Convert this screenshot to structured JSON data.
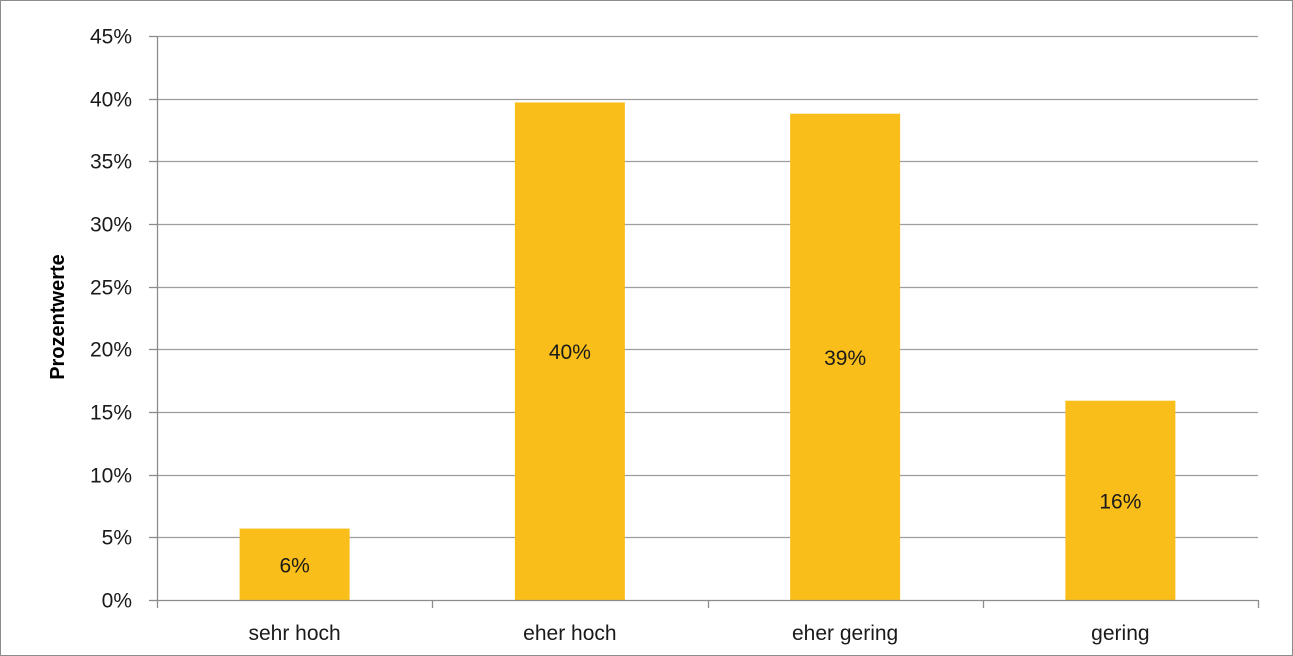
{
  "chart_data": {
    "type": "bar",
    "title": "",
    "xlabel": "",
    "ylabel": "Prozentwerte",
    "categories": [
      "sehr hoch",
      "eher hoch",
      "eher gering",
      "gering"
    ],
    "values": [
      5.7,
      39.7,
      38.8,
      15.9
    ],
    "data_labels": [
      "6%",
      "40%",
      "39%",
      "16%"
    ],
    "ylim": [
      0,
      45
    ],
    "y_ticks": [
      0,
      5,
      10,
      15,
      20,
      25,
      30,
      35,
      40,
      45
    ],
    "y_tick_labels": [
      "0%",
      "5%",
      "10%",
      "15%",
      "20%",
      "25%",
      "30%",
      "35%",
      "40%",
      "45%"
    ],
    "grid": true,
    "legend": "none",
    "colors": {
      "bar": "#F9BE1A",
      "grid": "#9d9d9d",
      "axis": "#8c8c8c",
      "text": "#1a1a1a"
    }
  }
}
